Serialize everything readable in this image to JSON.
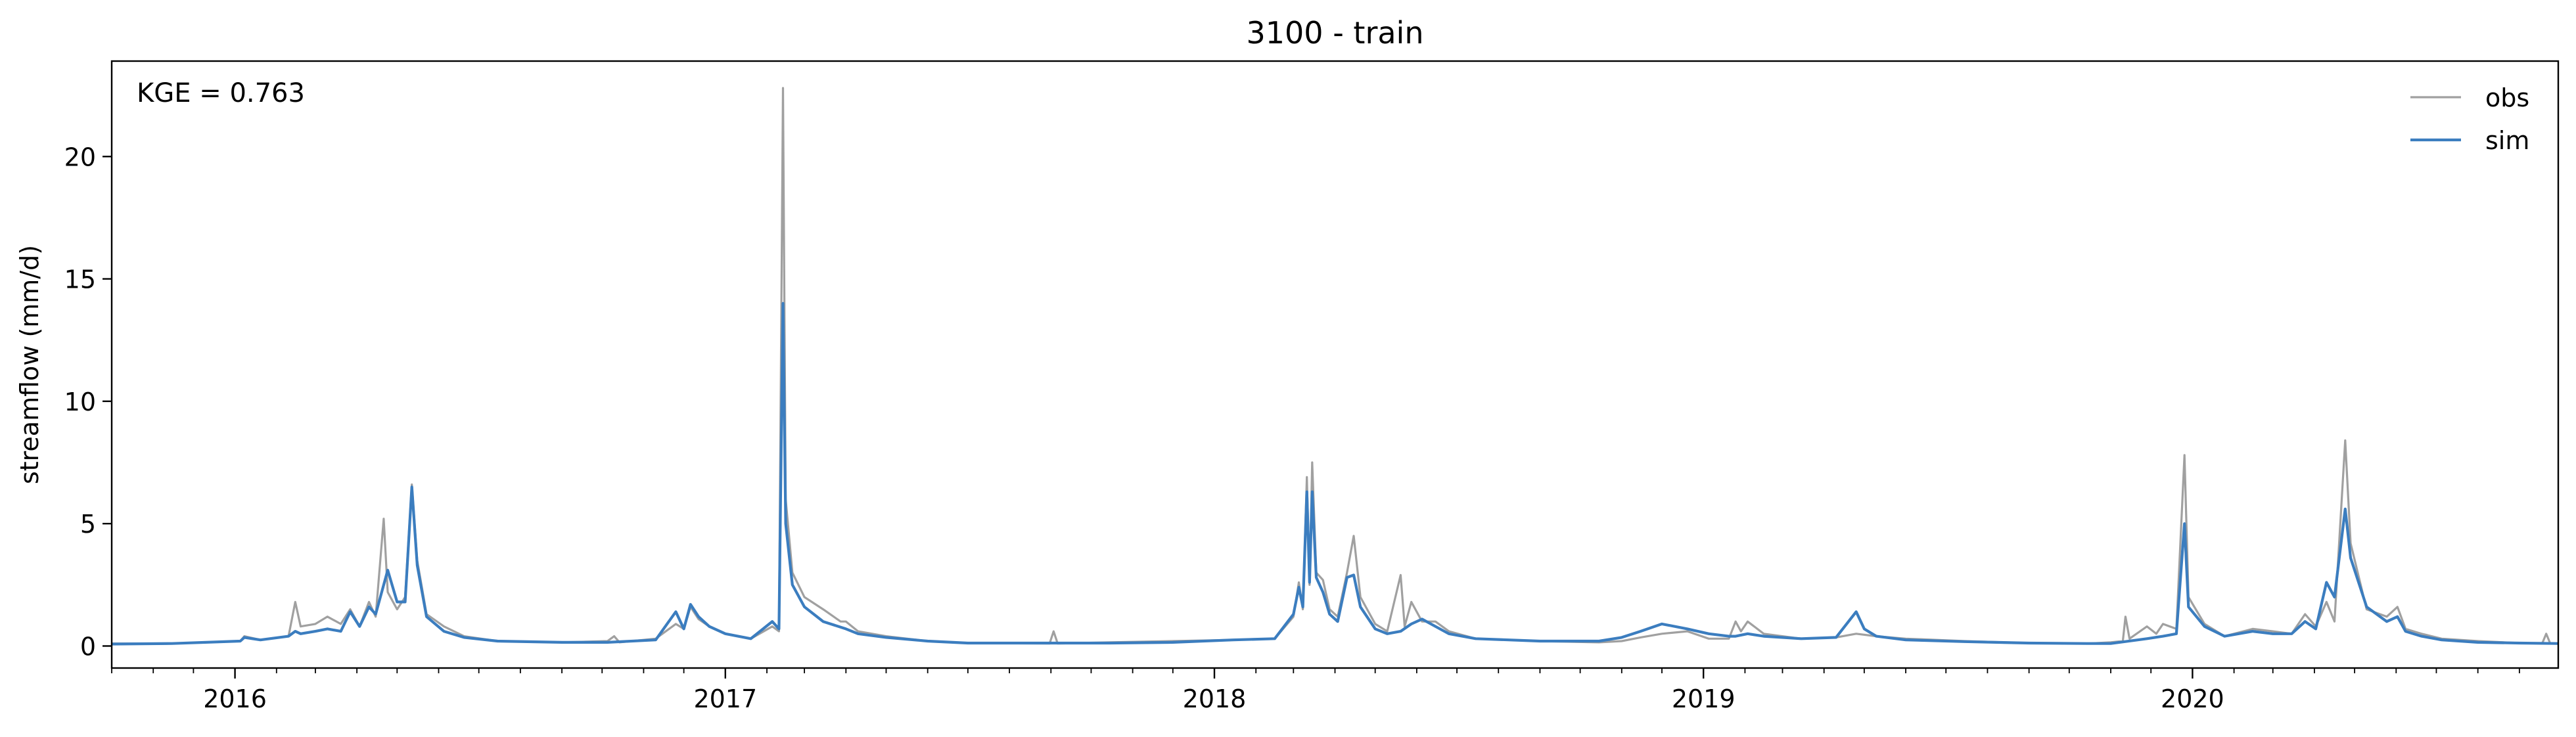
{
  "chart_data": {
    "type": "line",
    "title": "3100 - train",
    "xlabel": "",
    "ylabel": "streamflow (mm/d)",
    "annotation": "KGE = 0.763",
    "xlim": [
      "2015-10-01",
      "2020-09-30"
    ],
    "ylim": [
      -0.9,
      23.9
    ],
    "yticks": [
      0,
      5,
      10,
      15,
      20
    ],
    "xticks": [
      {
        "date": "2016-01-01",
        "label": "2016"
      },
      {
        "date": "2017-01-01",
        "label": "2017"
      },
      {
        "date": "2018-01-01",
        "label": "2018"
      },
      {
        "date": "2019-01-01",
        "label": "2019"
      },
      {
        "date": "2020-01-01",
        "label": "2020"
      }
    ],
    "grid": false,
    "legend_position": "top-right",
    "series": [
      {
        "name": "obs",
        "color": "#a0a0a0",
        "points": [
          [
            "2015-10-01",
            0.1
          ],
          [
            "2015-11-15",
            0.1
          ],
          [
            "2016-01-05",
            0.2
          ],
          [
            "2016-01-08",
            0.4
          ],
          [
            "2016-01-20",
            0.25
          ],
          [
            "2016-02-10",
            0.4
          ],
          [
            "2016-02-15",
            1.8
          ],
          [
            "2016-02-19",
            0.8
          ],
          [
            "2016-03-01",
            0.9
          ],
          [
            "2016-03-10",
            1.2
          ],
          [
            "2016-03-20",
            0.9
          ],
          [
            "2016-03-27",
            1.5
          ],
          [
            "2016-04-03",
            0.8
          ],
          [
            "2016-04-10",
            1.8
          ],
          [
            "2016-04-15",
            1.2
          ],
          [
            "2016-04-21",
            5.2
          ],
          [
            "2016-04-24",
            2.2
          ],
          [
            "2016-05-01",
            1.5
          ],
          [
            "2016-05-07",
            2.0
          ],
          [
            "2016-05-12",
            6.6
          ],
          [
            "2016-05-16",
            3.5
          ],
          [
            "2016-05-23",
            1.3
          ],
          [
            "2016-06-05",
            0.8
          ],
          [
            "2016-06-20",
            0.4
          ],
          [
            "2016-07-15",
            0.2
          ],
          [
            "2016-09-01",
            0.15
          ],
          [
            "2016-10-05",
            0.2
          ],
          [
            "2016-10-10",
            0.4
          ],
          [
            "2016-10-14",
            0.15
          ],
          [
            "2016-11-10",
            0.3
          ],
          [
            "2016-11-25",
            0.9
          ],
          [
            "2016-12-01",
            0.7
          ],
          [
            "2016-12-06",
            1.6
          ],
          [
            "2016-12-12",
            1.1
          ],
          [
            "2016-12-20",
            0.8
          ],
          [
            "2017-01-01",
            0.5
          ],
          [
            "2017-01-20",
            0.3
          ],
          [
            "2017-02-05",
            0.8
          ],
          [
            "2017-02-10",
            0.6
          ],
          [
            "2017-02-13",
            22.8
          ],
          [
            "2017-02-15",
            6.0
          ],
          [
            "2017-02-20",
            3.0
          ],
          [
            "2017-03-01",
            2.0
          ],
          [
            "2017-03-15",
            1.5
          ],
          [
            "2017-03-28",
            1.0
          ],
          [
            "2017-04-01",
            1.0
          ],
          [
            "2017-04-10",
            0.6
          ],
          [
            "2017-05-01",
            0.4
          ],
          [
            "2017-06-01",
            0.2
          ],
          [
            "2017-07-01",
            0.12
          ],
          [
            "2017-08-31",
            0.1
          ],
          [
            "2017-09-03",
            0.6
          ],
          [
            "2017-09-06",
            0.1
          ],
          [
            "2017-10-15",
            0.15
          ],
          [
            "2017-12-01",
            0.2
          ],
          [
            "2018-01-15",
            0.25
          ],
          [
            "2018-02-15",
            0.3
          ],
          [
            "2018-03-01",
            1.2
          ],
          [
            "2018-03-05",
            2.6
          ],
          [
            "2018-03-08",
            1.5
          ],
          [
            "2018-03-11",
            6.9
          ],
          [
            "2018-03-13",
            2.5
          ],
          [
            "2018-03-15",
            7.5
          ],
          [
            "2018-03-18",
            3.0
          ],
          [
            "2018-03-23",
            2.7
          ],
          [
            "2018-03-28",
            1.5
          ],
          [
            "2018-04-03",
            1.2
          ],
          [
            "2018-04-10",
            3.0
          ],
          [
            "2018-04-15",
            4.5
          ],
          [
            "2018-04-20",
            2.0
          ],
          [
            "2018-05-01",
            0.9
          ],
          [
            "2018-05-10",
            0.6
          ],
          [
            "2018-05-20",
            2.9
          ],
          [
            "2018-05-23",
            0.8
          ],
          [
            "2018-05-28",
            1.8
          ],
          [
            "2018-06-05",
            1.0
          ],
          [
            "2018-06-15",
            1.0
          ],
          [
            "2018-06-25",
            0.6
          ],
          [
            "2018-07-15",
            0.3
          ],
          [
            "2018-09-01",
            0.2
          ],
          [
            "2018-10-15",
            0.15
          ],
          [
            "2018-11-01",
            0.2
          ],
          [
            "2018-11-15",
            0.35
          ],
          [
            "2018-12-01",
            0.5
          ],
          [
            "2018-12-20",
            0.6
          ],
          [
            "2019-01-05",
            0.3
          ],
          [
            "2019-01-20",
            0.3
          ],
          [
            "2019-01-25",
            1.0
          ],
          [
            "2019-01-29",
            0.6
          ],
          [
            "2019-02-03",
            1.0
          ],
          [
            "2019-02-15",
            0.5
          ],
          [
            "2019-03-15",
            0.3
          ],
          [
            "2019-04-10",
            0.35
          ],
          [
            "2019-04-25",
            0.5
          ],
          [
            "2019-05-10",
            0.4
          ],
          [
            "2019-06-01",
            0.3
          ],
          [
            "2019-07-15",
            0.2
          ],
          [
            "2019-09-01",
            0.12
          ],
          [
            "2019-10-15",
            0.1
          ],
          [
            "2019-11-01",
            0.15
          ],
          [
            "2019-11-10",
            0.2
          ],
          [
            "2019-11-12",
            1.2
          ],
          [
            "2019-11-15",
            0.3
          ],
          [
            "2019-11-28",
            0.8
          ],
          [
            "2019-12-05",
            0.5
          ],
          [
            "2019-12-10",
            0.9
          ],
          [
            "2019-12-20",
            0.7
          ],
          [
            "2019-12-26",
            7.8
          ],
          [
            "2019-12-29",
            2.0
          ],
          [
            "2020-01-10",
            0.9
          ],
          [
            "2020-01-25",
            0.4
          ],
          [
            "2020-02-15",
            0.7
          ],
          [
            "2020-03-01",
            0.6
          ],
          [
            "2020-03-15",
            0.5
          ],
          [
            "2020-03-25",
            1.3
          ],
          [
            "2020-04-02",
            0.8
          ],
          [
            "2020-04-10",
            1.8
          ],
          [
            "2020-04-16",
            1.0
          ],
          [
            "2020-04-24",
            8.4
          ],
          [
            "2020-04-28",
            4.2
          ],
          [
            "2020-05-10",
            1.5
          ],
          [
            "2020-05-25",
            1.2
          ],
          [
            "2020-06-02",
            1.6
          ],
          [
            "2020-06-08",
            0.7
          ],
          [
            "2020-06-20",
            0.5
          ],
          [
            "2020-07-05",
            0.3
          ],
          [
            "2020-08-01",
            0.2
          ],
          [
            "2020-09-01",
            0.12
          ],
          [
            "2020-09-18",
            0.1
          ],
          [
            "2020-09-21",
            0.5
          ],
          [
            "2020-09-24",
            0.1
          ],
          [
            "2020-09-30",
            0.1
          ]
        ]
      },
      {
        "name": "sim",
        "color": "#3b7dbf",
        "points": [
          [
            "2015-10-01",
            0.08
          ],
          [
            "2015-11-15",
            0.1
          ],
          [
            "2016-01-05",
            0.2
          ],
          [
            "2016-01-08",
            0.35
          ],
          [
            "2016-01-20",
            0.25
          ],
          [
            "2016-02-10",
            0.4
          ],
          [
            "2016-02-15",
            0.6
          ],
          [
            "2016-02-19",
            0.5
          ],
          [
            "2016-03-01",
            0.6
          ],
          [
            "2016-03-10",
            0.7
          ],
          [
            "2016-03-20",
            0.6
          ],
          [
            "2016-03-27",
            1.4
          ],
          [
            "2016-04-03",
            0.8
          ],
          [
            "2016-04-10",
            1.6
          ],
          [
            "2016-04-15",
            1.3
          ],
          [
            "2016-04-24",
            3.1
          ],
          [
            "2016-05-01",
            1.8
          ],
          [
            "2016-05-07",
            1.8
          ],
          [
            "2016-05-12",
            6.5
          ],
          [
            "2016-05-16",
            3.3
          ],
          [
            "2016-05-23",
            1.2
          ],
          [
            "2016-06-05",
            0.6
          ],
          [
            "2016-06-20",
            0.35
          ],
          [
            "2016-07-15",
            0.2
          ],
          [
            "2016-09-01",
            0.15
          ],
          [
            "2016-10-05",
            0.15
          ],
          [
            "2016-11-10",
            0.25
          ],
          [
            "2016-11-25",
            1.4
          ],
          [
            "2016-12-01",
            0.7
          ],
          [
            "2016-12-06",
            1.7
          ],
          [
            "2016-12-12",
            1.2
          ],
          [
            "2016-12-20",
            0.8
          ],
          [
            "2017-01-01",
            0.5
          ],
          [
            "2017-01-20",
            0.3
          ],
          [
            "2017-02-05",
            1.0
          ],
          [
            "2017-02-10",
            0.7
          ],
          [
            "2017-02-13",
            14.0
          ],
          [
            "2017-02-15",
            5.0
          ],
          [
            "2017-02-20",
            2.5
          ],
          [
            "2017-03-01",
            1.6
          ],
          [
            "2017-03-15",
            1.0
          ],
          [
            "2017-04-01",
            0.7
          ],
          [
            "2017-04-10",
            0.5
          ],
          [
            "2017-05-01",
            0.35
          ],
          [
            "2017-06-01",
            0.2
          ],
          [
            "2017-07-01",
            0.12
          ],
          [
            "2017-10-15",
            0.12
          ],
          [
            "2017-12-01",
            0.15
          ],
          [
            "2018-01-15",
            0.25
          ],
          [
            "2018-02-15",
            0.3
          ],
          [
            "2018-03-01",
            1.3
          ],
          [
            "2018-03-05",
            2.4
          ],
          [
            "2018-03-08",
            1.6
          ],
          [
            "2018-03-11",
            6.3
          ],
          [
            "2018-03-13",
            2.6
          ],
          [
            "2018-03-15",
            6.3
          ],
          [
            "2018-03-18",
            2.8
          ],
          [
            "2018-03-23",
            2.2
          ],
          [
            "2018-03-28",
            1.3
          ],
          [
            "2018-04-03",
            1.0
          ],
          [
            "2018-04-10",
            2.8
          ],
          [
            "2018-04-15",
            2.9
          ],
          [
            "2018-04-20",
            1.6
          ],
          [
            "2018-05-01",
            0.7
          ],
          [
            "2018-05-10",
            0.5
          ],
          [
            "2018-05-20",
            0.6
          ],
          [
            "2018-05-28",
            0.9
          ],
          [
            "2018-06-05",
            1.1
          ],
          [
            "2018-06-15",
            0.8
          ],
          [
            "2018-06-25",
            0.5
          ],
          [
            "2018-07-15",
            0.3
          ],
          [
            "2018-09-01",
            0.2
          ],
          [
            "2018-10-15",
            0.2
          ],
          [
            "2018-11-01",
            0.35
          ],
          [
            "2018-11-15",
            0.6
          ],
          [
            "2018-12-01",
            0.9
          ],
          [
            "2018-12-20",
            0.7
          ],
          [
            "2019-01-05",
            0.5
          ],
          [
            "2019-01-20",
            0.4
          ],
          [
            "2019-01-25",
            0.4
          ],
          [
            "2019-02-03",
            0.5
          ],
          [
            "2019-02-15",
            0.4
          ],
          [
            "2019-03-15",
            0.3
          ],
          [
            "2019-04-10",
            0.35
          ],
          [
            "2019-04-25",
            1.4
          ],
          [
            "2019-05-01",
            0.7
          ],
          [
            "2019-05-10",
            0.4
          ],
          [
            "2019-06-01",
            0.25
          ],
          [
            "2019-07-15",
            0.18
          ],
          [
            "2019-09-01",
            0.12
          ],
          [
            "2019-10-15",
            0.1
          ],
          [
            "2019-11-01",
            0.1
          ],
          [
            "2019-11-28",
            0.3
          ],
          [
            "2019-12-10",
            0.4
          ],
          [
            "2019-12-20",
            0.5
          ],
          [
            "2019-12-26",
            5.0
          ],
          [
            "2019-12-29",
            1.6
          ],
          [
            "2020-01-10",
            0.8
          ],
          [
            "2020-01-25",
            0.4
          ],
          [
            "2020-02-15",
            0.6
          ],
          [
            "2020-03-01",
            0.5
          ],
          [
            "2020-03-15",
            0.5
          ],
          [
            "2020-03-25",
            1.0
          ],
          [
            "2020-04-02",
            0.7
          ],
          [
            "2020-04-10",
            2.6
          ],
          [
            "2020-04-16",
            2.0
          ],
          [
            "2020-04-24",
            5.6
          ],
          [
            "2020-04-28",
            3.6
          ],
          [
            "2020-05-10",
            1.6
          ],
          [
            "2020-05-25",
            1.0
          ],
          [
            "2020-06-02",
            1.2
          ],
          [
            "2020-06-08",
            0.6
          ],
          [
            "2020-06-20",
            0.4
          ],
          [
            "2020-07-05",
            0.25
          ],
          [
            "2020-08-01",
            0.15
          ],
          [
            "2020-09-01",
            0.12
          ],
          [
            "2020-09-30",
            0.1
          ]
        ]
      }
    ]
  }
}
